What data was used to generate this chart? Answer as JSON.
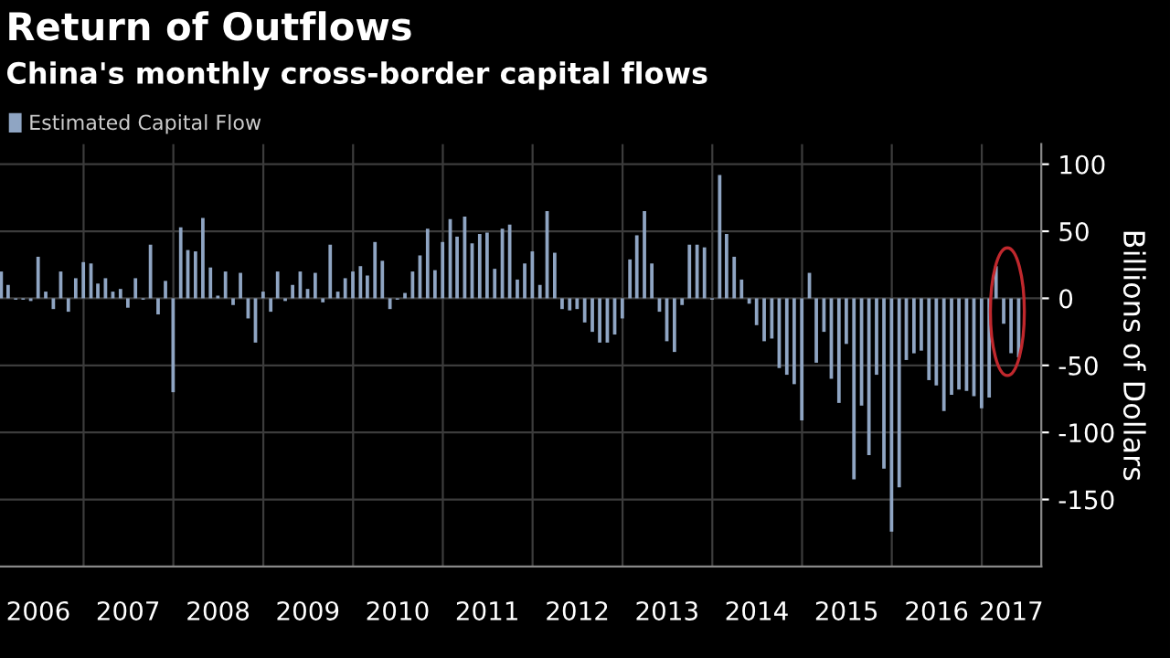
{
  "chart_data": {
    "type": "bar",
    "title": "Return of Outflows",
    "subtitle": "China's monthly cross-border capital flows",
    "ylabel": "Billions of Dollars",
    "x": [
      "2006-01-31",
      "2006-02-28",
      "2006-03-31",
      "2006-04-30",
      "2006-05-31",
      "2006-06-30",
      "2006-07-31",
      "2006-08-31",
      "2006-09-30",
      "2006-10-31",
      "2006-11-30",
      "2006-12-31",
      "2007-01-31",
      "2007-02-28",
      "2007-03-31",
      "2007-04-30",
      "2007-05-31",
      "2007-06-30",
      "2007-07-31",
      "2007-08-31",
      "2007-09-30",
      "2007-10-31",
      "2007-11-30",
      "2007-12-31",
      "2008-01-31",
      "2008-02-29",
      "2008-03-31",
      "2008-04-30",
      "2008-05-31",
      "2008-06-30",
      "2008-07-31",
      "2008-08-31",
      "2008-09-30",
      "2008-10-31",
      "2008-11-30",
      "2008-12-31",
      "2009-01-31",
      "2009-02-28",
      "2009-03-31",
      "2009-04-30",
      "2009-05-31",
      "2009-06-30",
      "2009-07-31",
      "2009-08-31",
      "2009-09-30",
      "2009-10-31",
      "2009-11-30",
      "2009-12-31",
      "2010-01-31",
      "2010-02-28",
      "2010-03-31",
      "2010-04-30",
      "2010-05-31",
      "2010-06-30",
      "2010-07-31",
      "2010-08-31",
      "2010-09-30",
      "2010-10-31",
      "2010-11-30",
      "2010-12-31",
      "2011-01-31",
      "2011-02-28",
      "2011-03-31",
      "2011-04-30",
      "2011-05-31",
      "2011-06-30",
      "2011-07-31",
      "2011-08-31",
      "2011-09-30",
      "2011-10-31",
      "2011-11-30",
      "2011-12-31",
      "2012-01-31",
      "2012-02-29",
      "2012-03-31",
      "2012-04-30",
      "2012-05-31",
      "2012-06-30",
      "2012-07-31",
      "2012-08-31",
      "2012-09-30",
      "2012-10-31",
      "2012-11-30",
      "2012-12-31",
      "2013-01-31",
      "2013-02-28",
      "2013-03-31",
      "2013-04-30",
      "2013-05-31",
      "2013-06-30",
      "2013-07-31",
      "2013-08-31",
      "2013-09-30",
      "2013-10-31",
      "2013-11-30",
      "2013-12-31",
      "2014-01-31",
      "2014-02-28",
      "2014-03-31",
      "2014-04-30",
      "2014-05-31",
      "2014-06-30",
      "2014-07-31",
      "2014-08-31",
      "2014-09-30",
      "2014-10-31",
      "2014-11-30",
      "2014-12-31",
      "2015-01-31",
      "2015-02-28",
      "2015-03-31",
      "2015-04-30",
      "2015-05-31",
      "2015-06-30",
      "2015-07-31",
      "2015-08-31",
      "2015-09-30",
      "2015-10-31",
      "2015-11-30",
      "2015-12-31",
      "2016-01-31",
      "2016-02-29",
      "2016-03-31",
      "2016-04-30",
      "2016-05-31",
      "2016-06-30",
      "2016-07-31",
      "2016-08-31",
      "2016-09-30",
      "2016-10-31",
      "2016-11-30",
      "2016-12-31",
      "2017-01-31",
      "2017-02-28",
      "2017-03-31",
      "2017-04-30",
      "2017-05-31"
    ],
    "series": [
      {
        "name": "Estimated Capital Flow",
        "color": "#8fa5c3",
        "values": [
          20,
          10,
          -1,
          -1,
          -2,
          31,
          5,
          -8,
          20,
          -10,
          15,
          27,
          26,
          11,
          15,
          5,
          7,
          -7,
          15,
          -1,
          40,
          -12,
          13,
          -70,
          53,
          36,
          35,
          60,
          23,
          2,
          20,
          -5,
          19,
          -15,
          -33,
          5,
          -10,
          20,
          -2,
          10,
          20,
          7,
          19,
          -3,
          40,
          5,
          15,
          20,
          24,
          17,
          42,
          28,
          -8,
          -1,
          4,
          20,
          32,
          52,
          21,
          42,
          59,
          46,
          61,
          41,
          48,
          49,
          22,
          52,
          55,
          14,
          26,
          35,
          10,
          65,
          34,
          -8,
          -9,
          -8,
          -18,
          -25,
          -33,
          -33,
          -27,
          -15,
          29,
          47,
          65,
          26,
          -10,
          -32,
          -40,
          -5,
          40,
          40,
          38,
          -1,
          92,
          48,
          31,
          14,
          -4,
          -20,
          -32,
          -30,
          -52,
          -57,
          -64,
          -91,
          19,
          -48,
          -25,
          -60,
          -78,
          -34,
          -135,
          -80,
          -117,
          -57,
          -127,
          -174,
          -141,
          -46,
          -41,
          -39,
          -61,
          -65,
          -84,
          -72,
          -68,
          -69,
          -73,
          -82,
          -74,
          24,
          -19,
          -41,
          -44
        ]
      }
    ],
    "xlim": [
      "2006-01-26",
      "2017-08-31"
    ],
    "xticks": [
      {
        "value": "2006-07-01",
        "label": "2006"
      },
      {
        "value": "2007-01-01",
        "label": null
      },
      {
        "value": "2007-07-01",
        "label": "2007"
      },
      {
        "value": "2008-01-01",
        "label": null
      },
      {
        "value": "2008-07-01",
        "label": "2008"
      },
      {
        "value": "2009-01-01",
        "label": null
      },
      {
        "value": "2009-07-01",
        "label": "2009"
      },
      {
        "value": "2010-01-01",
        "label": null
      },
      {
        "value": "2010-07-01",
        "label": "2010"
      },
      {
        "value": "2011-01-01",
        "label": null
      },
      {
        "value": "2011-07-01",
        "label": "2011"
      },
      {
        "value": "2012-01-01",
        "label": null
      },
      {
        "value": "2012-07-01",
        "label": "2012"
      },
      {
        "value": "2013-01-01",
        "label": null
      },
      {
        "value": "2013-07-01",
        "label": "2013"
      },
      {
        "value": "2014-01-01",
        "label": null
      },
      {
        "value": "2014-07-01",
        "label": "2014"
      },
      {
        "value": "2015-01-01",
        "label": null
      },
      {
        "value": "2015-07-01",
        "label": "2015"
      },
      {
        "value": "2016-01-01",
        "label": null
      },
      {
        "value": "2016-07-01",
        "label": "2016"
      },
      {
        "value": "2017-01-01",
        "label": null
      },
      {
        "value": "2017-05-01",
        "label": "2017"
      }
    ],
    "ylim": [
      -200,
      115
    ],
    "yticks": [
      -150,
      -100,
      -50,
      0,
      50,
      100
    ],
    "grid": true,
    "legend": "top left"
  }
}
